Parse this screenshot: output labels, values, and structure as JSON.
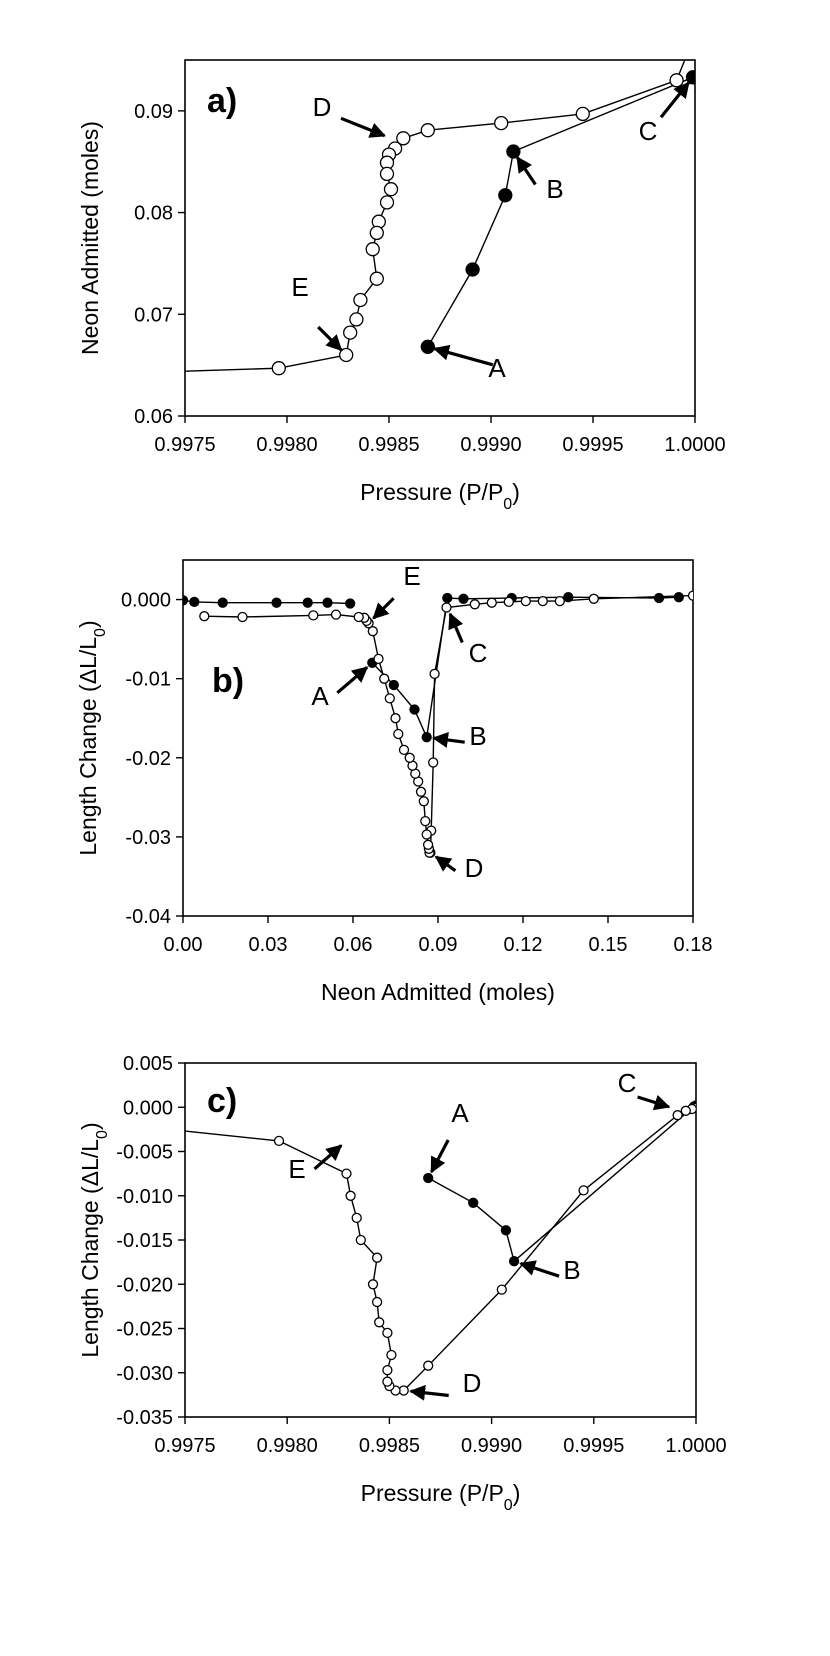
{
  "figure": {
    "background": "#ffffff",
    "ink": "#000000"
  },
  "chart_data": [
    {
      "id": "a",
      "type": "scatter",
      "panel_label": "a)",
      "title": "",
      "xlabel": "Pressure (P/P",
      "xlabel_sub": "0",
      "xlabel_end": ")",
      "ylabel": "Neon Admitted (moles)",
      "ylabel_sub": "",
      "ylabel_end": "",
      "xlim": [
        0.9975,
        1.0
      ],
      "ylim": [
        0.06,
        0.095
      ],
      "xticks": [
        0.9975,
        0.998,
        0.9985,
        0.999,
        0.9995,
        1.0
      ],
      "xtick_labels": [
        "0.9975",
        "0.9980",
        "0.9985",
        "0.9990",
        "0.9995",
        "1.0000"
      ],
      "yticks": [
        0.06,
        0.07,
        0.08,
        0.09
      ],
      "ytick_labels": [
        "0.06",
        "0.07",
        "0.08",
        "0.09"
      ],
      "grid": false,
      "series": [
        {
          "name": "adsorption (filled)",
          "marker": "filled-circle",
          "marker_size": "large",
          "x": [
            0.99869,
            0.99891,
            0.99907,
            0.99911,
            0.99999
          ],
          "y": [
            0.0668,
            0.0744,
            0.0817,
            0.086,
            0.0933
          ]
        },
        {
          "name": "desorption (open)",
          "marker": "open-circle",
          "marker_size": "large",
          "x": [
            0.99995,
            0.99991,
            0.99945,
            0.99905,
            0.99869,
            0.99857,
            0.99853,
            0.9985,
            0.99849,
            0.99849,
            0.99851,
            0.99849,
            0.99845,
            0.99844,
            0.99842,
            0.99844,
            0.99836,
            0.99834,
            0.99831,
            0.99829,
            0.99796,
            0.9975
          ],
          "y": [
            0.095,
            0.093,
            0.0897,
            0.0888,
            0.0881,
            0.0873,
            0.0863,
            0.0857,
            0.0849,
            0.0838,
            0.0823,
            0.081,
            0.0791,
            0.078,
            0.0764,
            0.0735,
            0.0714,
            0.0695,
            0.0682,
            0.066,
            0.0647,
            0.0644
          ],
          "marker_mask": [
            false,
            true,
            true,
            true,
            true,
            true,
            true,
            true,
            true,
            true,
            true,
            true,
            true,
            true,
            true,
            true,
            true,
            true,
            true,
            true,
            true,
            false
          ]
        }
      ],
      "annotations": [
        {
          "label": "A",
          "x": 0.99869,
          "y": 0.0668
        },
        {
          "label": "B",
          "x": 0.99911,
          "y": 0.086
        },
        {
          "label": "C",
          "x": 0.99999,
          "y": 0.0933
        },
        {
          "label": "D",
          "x": 0.99851,
          "y": 0.0873
        },
        {
          "label": "E",
          "x": 0.99829,
          "y": 0.066
        }
      ]
    },
    {
      "id": "b",
      "type": "scatter",
      "panel_label": "b)",
      "title": "",
      "xlabel": "Neon Admitted (moles)",
      "xlabel_sub": "",
      "xlabel_end": "",
      "ylabel": "Length Change  (ΔL/L",
      "ylabel_sub": "0",
      "ylabel_end": ")",
      "xlim": [
        0.0,
        0.18
      ],
      "ylim": [
        -0.04,
        0.005
      ],
      "xticks": [
        0.0,
        0.03,
        0.06,
        0.09,
        0.12,
        0.15,
        0.18
      ],
      "xtick_labels": [
        "0.00",
        "0.03",
        "0.06",
        "0.09",
        "0.12",
        "0.15",
        "0.18"
      ],
      "yticks": [
        -0.04,
        -0.03,
        -0.02,
        -0.01,
        0.0
      ],
      "ytick_labels": [
        "-0.04",
        "-0.03",
        "-0.02",
        "-0.01",
        "0.000"
      ],
      "grid": false,
      "series": [
        {
          "name": "initial (filled)",
          "marker": "filled-circle",
          "marker_size": "small",
          "x": [
            0.0,
            0.004,
            0.014,
            0.033,
            0.044,
            0.051,
            0.059
          ],
          "y": [
            -0.0001,
            -0.0003,
            -0.0004,
            -0.0004,
            -0.0004,
            -0.0004,
            -0.0005
          ]
        },
        {
          "name": "adsorption (filled)",
          "marker": "filled-circle",
          "marker_size": "small",
          "x": [
            0.0668,
            0.0744,
            0.0817,
            0.086,
            0.0933,
            0.099,
            0.116,
            0.136,
            0.168,
            0.175
          ],
          "y": [
            -0.008,
            -0.0108,
            -0.0139,
            -0.0174,
            0.0002,
            0.0001,
            0.0002,
            0.0003,
            0.0002,
            0.0003
          ]
        },
        {
          "name": "desorption (open)",
          "marker": "open-circle",
          "marker_size": "small",
          "x": [
            0.18,
            0.145,
            0.133,
            0.127,
            0.121,
            0.115,
            0.109,
            0.103,
            0.093,
            0.0888,
            0.0883,
            0.0876,
            0.0873,
            0.087,
            0.0868,
            0.0865,
            0.086,
            0.0855,
            0.085,
            0.084,
            0.083,
            0.082,
            0.081,
            0.08,
            0.078,
            0.076,
            0.075,
            0.073,
            0.071,
            0.069,
            0.067,
            0.0655,
            0.0648,
            0.064,
            0.062,
            0.054,
            0.046,
            0.021,
            0.0075
          ],
          "y": [
            0.0005,
            0.0001,
            -0.0002,
            -0.0002,
            -0.0002,
            -0.0003,
            -0.0004,
            -0.0006,
            -0.001,
            -0.0094,
            -0.0206,
            -0.0292,
            -0.032,
            -0.032,
            -0.0315,
            -0.031,
            -0.0297,
            -0.028,
            -0.0255,
            -0.0243,
            -0.023,
            -0.022,
            -0.021,
            -0.02,
            -0.019,
            -0.017,
            -0.015,
            -0.0125,
            -0.01,
            -0.0075,
            -0.004,
            -0.003,
            -0.0027,
            -0.0023,
            -0.0022,
            -0.0019,
            -0.002,
            -0.0022,
            -0.0021
          ]
        }
      ],
      "annotations": [
        {
          "label": "A",
          "x": 0.0668,
          "y": -0.008
        },
        {
          "label": "B",
          "x": 0.086,
          "y": -0.0174
        },
        {
          "label": "C",
          "x": 0.0933,
          "y": -0.001
        },
        {
          "label": "D",
          "x": 0.0873,
          "y": -0.032
        },
        {
          "label": "E",
          "x": 0.0655,
          "y": -0.003
        }
      ]
    },
    {
      "id": "c",
      "type": "scatter",
      "panel_label": "c)",
      "title": "",
      "xlabel": "Pressure (P/P",
      "xlabel_sub": "0",
      "xlabel_end": ")",
      "ylabel": "Length Change (ΔL/L",
      "ylabel_sub": "0",
      "ylabel_end": ")",
      "xlim": [
        0.9975,
        1.0
      ],
      "ylim": [
        -0.035,
        0.005
      ],
      "xticks": [
        0.9975,
        0.998,
        0.9985,
        0.999,
        0.9995,
        1.0
      ],
      "xtick_labels": [
        "0.9975",
        "0.9980",
        "0.9985",
        "0.9990",
        "0.9995",
        "1.0000"
      ],
      "yticks": [
        -0.035,
        -0.03,
        -0.025,
        -0.02,
        -0.015,
        -0.01,
        -0.005,
        0.0,
        0.005
      ],
      "ytick_labels": [
        "-0.035",
        "-0.030",
        "-0.025",
        "-0.020",
        "-0.015",
        "-0.010",
        "-0.005",
        "0.000",
        "0.005"
      ],
      "grid": false,
      "series": [
        {
          "name": "adsorption (filled)",
          "marker": "filled-circle",
          "marker_size": "small",
          "x": [
            0.99869,
            0.99891,
            0.99907,
            0.99911,
            0.99999,
            1.0
          ],
          "y": [
            -0.008,
            -0.0108,
            -0.0139,
            -0.0174,
            0.0001,
            0.0002
          ]
        },
        {
          "name": "desorption (open)",
          "marker": "open-circle",
          "marker_size": "small",
          "x": [
            1.0,
            0.99998,
            0.99995,
            0.99991,
            0.99945,
            0.99905,
            0.99869,
            0.99857,
            0.99853,
            0.9985,
            0.99849,
            0.99849,
            0.99851,
            0.99849,
            0.99845,
            0.99844,
            0.99842,
            0.99844,
            0.99836,
            0.99834,
            0.99831,
            0.99829,
            0.99796,
            0.9975
          ],
          "y": [
            -0.0001,
            -0.0002,
            -0.0004,
            -0.0009,
            -0.0094,
            -0.0206,
            -0.0292,
            -0.032,
            -0.032,
            -0.0315,
            -0.031,
            -0.0297,
            -0.028,
            -0.0255,
            -0.0243,
            -0.022,
            -0.02,
            -0.017,
            -0.015,
            -0.0125,
            -0.01,
            -0.0075,
            -0.0038,
            -0.0027
          ],
          "marker_mask": [
            true,
            true,
            true,
            true,
            true,
            true,
            true,
            true,
            true,
            true,
            true,
            true,
            true,
            true,
            true,
            true,
            true,
            true,
            true,
            true,
            true,
            true,
            true,
            false
          ]
        }
      ],
      "annotations": [
        {
          "label": "A",
          "x": 0.99869,
          "y": -0.008
        },
        {
          "label": "B",
          "x": 0.99911,
          "y": -0.0174
        },
        {
          "label": "C",
          "x": 0.9999,
          "y": -0.0002
        },
        {
          "label": "D",
          "x": 0.99857,
          "y": -0.032
        },
        {
          "label": "E",
          "x": 0.99829,
          "y": -0.0038
        }
      ]
    }
  ]
}
